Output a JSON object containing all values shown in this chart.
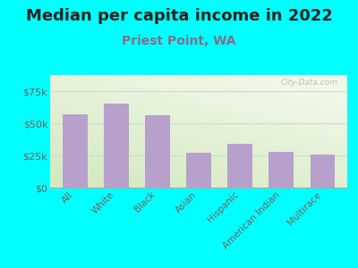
{
  "title": "Median per capita income in 2022",
  "subtitle": "Priest Point, WA",
  "categories": [
    "All",
    "White",
    "Black",
    "Asian",
    "Hispanic",
    "American Indian",
    "Multirace"
  ],
  "values": [
    57000,
    65000,
    56000,
    27000,
    34000,
    27500,
    25500
  ],
  "bar_color": "#b8a0cc",
  "ylim": [
    0,
    87500
  ],
  "yticks": [
    0,
    25000,
    50000,
    75000
  ],
  "ytick_labels": [
    "$0",
    "$25k",
    "$50k",
    "$75k"
  ],
  "bg_outer": "#00ffff",
  "bg_inner_topleft": "#d4e8c0",
  "bg_inner_bottomright": "#f5faee",
  "title_color": "#222222",
  "subtitle_color": "#8b6a8b",
  "tick_color": "#7a6060",
  "watermark": "City-Data.com",
  "title_fontsize": 13,
  "subtitle_fontsize": 10,
  "grid_color": "#ccddcc"
}
